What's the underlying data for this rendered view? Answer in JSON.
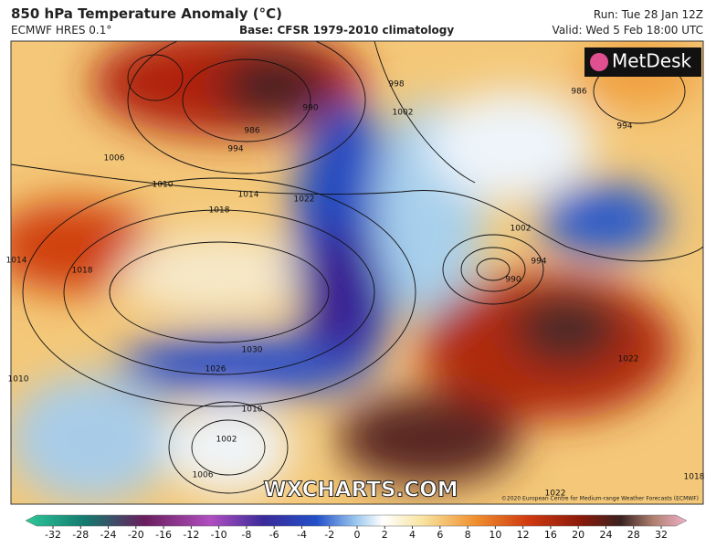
{
  "header": {
    "title": "850 hPa Temperature Anomaly (°C)",
    "model": "ECMWF HRES 0.1°",
    "base": "Base: CFSR 1979-2010 climatology",
    "run": "Run: Tue 28 Jan 12Z",
    "valid": "Valid: Wed 5 Feb 18:00 UTC"
  },
  "map": {
    "logo": "MetDesk",
    "watermark": "WXCHARTS.COM",
    "credit": "©2020 European Centre for Medium-range Weather Forecasts (ECMWF)",
    "isobar_labels": [
      1006,
      1010,
      1014,
      1018,
      1022,
      994,
      986,
      990,
      998,
      1002,
      1002,
      990,
      994,
      986,
      994,
      1022,
      1030,
      1026,
      1010,
      1002,
      1006,
      1010,
      1014,
      1018,
      1022,
      1018
    ]
  },
  "colorbar": {
    "ticks": [
      -32,
      -28,
      -24,
      -20,
      -16,
      -12,
      -10,
      -8,
      -6,
      -4,
      -2,
      0,
      2,
      4,
      6,
      8,
      10,
      12,
      16,
      20,
      24,
      28,
      32
    ]
  }
}
